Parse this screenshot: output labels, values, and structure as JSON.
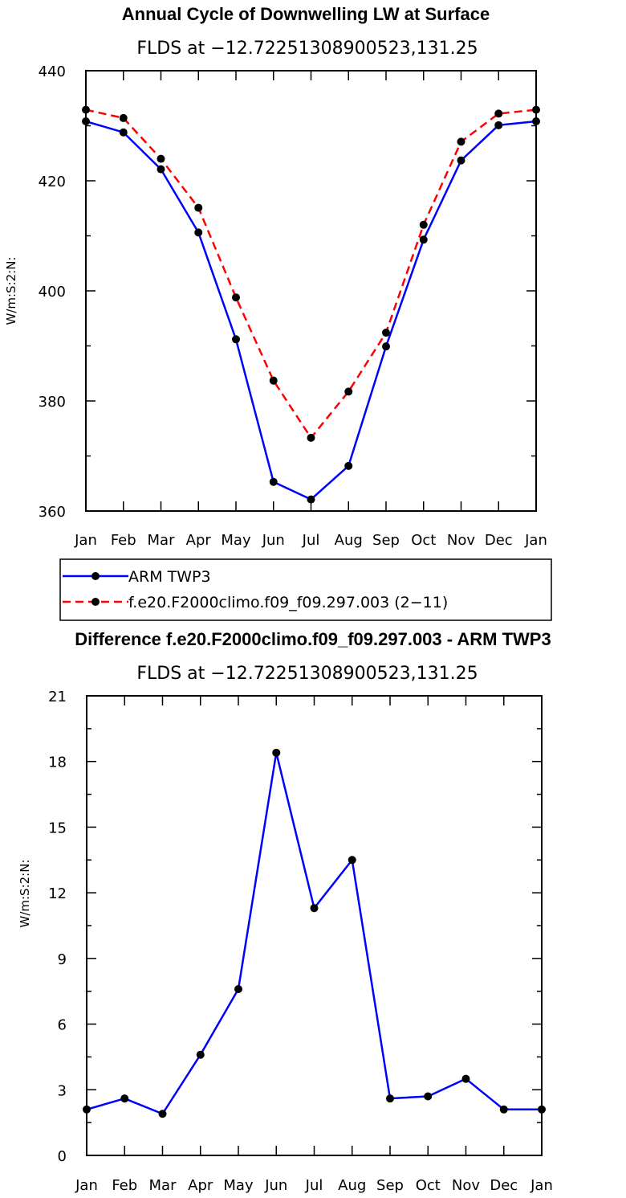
{
  "chart_data": [
    {
      "type": "line",
      "title": "Annual Cycle of Downwelling LW at Surface",
      "subtitle": "FLDS at −12.72251308900523,131.25",
      "ylabel": "W/m:S:2:N:",
      "xlabel": "",
      "categories": [
        "Jan",
        "Feb",
        "Mar",
        "Apr",
        "May",
        "Jun",
        "Jul",
        "Aug",
        "Sep",
        "Oct",
        "Nov",
        "Dec",
        "Jan"
      ],
      "ylim": [
        360,
        440
      ],
      "yticks": [
        360,
        380,
        400,
        420,
        440
      ],
      "grid": false,
      "legend": "bottom",
      "series": [
        {
          "name": "ARM TWP3",
          "color": "#0000ff",
          "dash": "solid",
          "values": [
            430.8,
            428.8,
            422.1,
            410.6,
            391.2,
            365.3,
            362.1,
            368.2,
            389.9,
            409.3,
            423.7,
            430.1,
            430.8
          ]
        },
        {
          "name": "f.e20.F2000climo.f09_f09.297.003 (2−11)",
          "color": "#ff0000",
          "dash": "dashed",
          "values": [
            432.9,
            431.4,
            424.0,
            415.1,
            398.8,
            383.7,
            373.3,
            381.7,
            392.4,
            412.0,
            427.1,
            432.2,
            432.9
          ]
        }
      ]
    },
    {
      "type": "line",
      "title": "Difference f.e20.F2000climo.f09_f09.297.003 - ARM TWP3",
      "subtitle": "FLDS at −12.72251308900523,131.25",
      "ylabel": "W/m:S:2:N:",
      "xlabel": "",
      "categories": [
        "Jan",
        "Feb",
        "Mar",
        "Apr",
        "May",
        "Jun",
        "Jul",
        "Aug",
        "Sep",
        "Oct",
        "Nov",
        "Dec",
        "Jan"
      ],
      "ylim": [
        0,
        21
      ],
      "yticks": [
        0,
        3,
        6,
        9,
        12,
        15,
        18,
        21
      ],
      "grid": false,
      "series": [
        {
          "color": "#0000ff",
          "dash": "solid",
          "values": [
            2.1,
            2.6,
            1.9,
            4.6,
            7.6,
            18.4,
            11.3,
            13.5,
            2.6,
            2.7,
            3.5,
            2.1,
            2.1
          ]
        }
      ]
    }
  ]
}
